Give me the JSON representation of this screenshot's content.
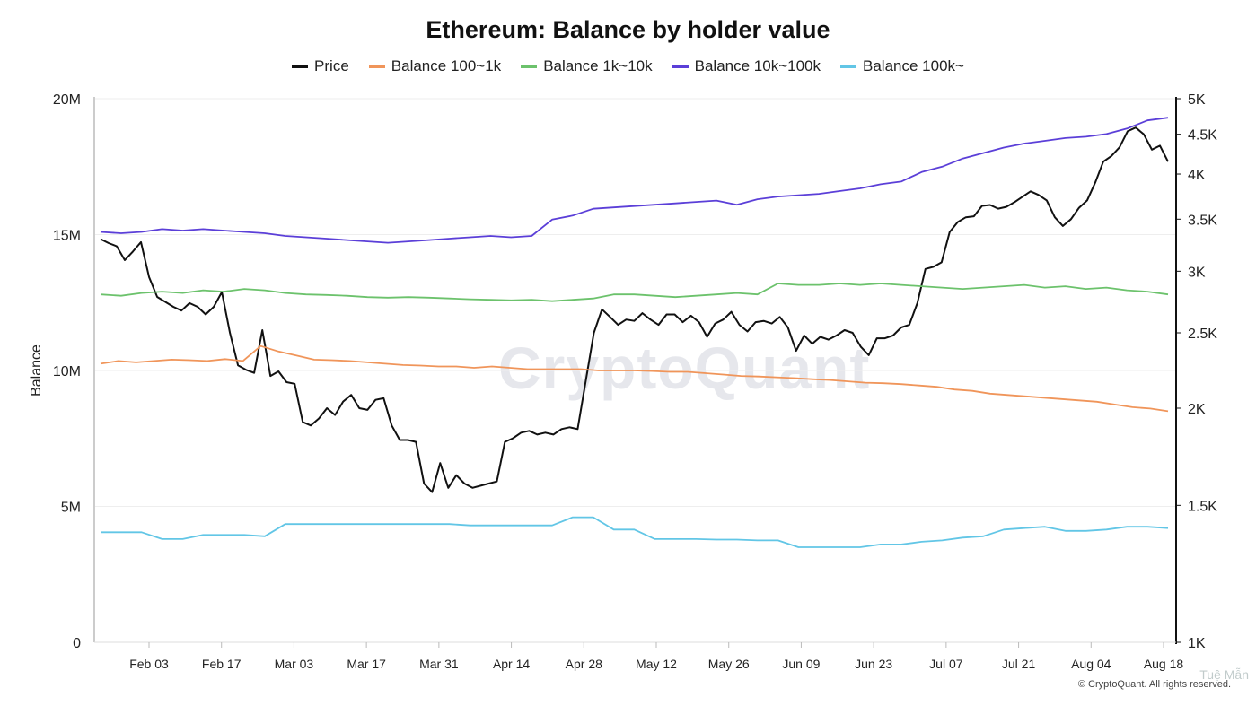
{
  "chart_data": {
    "type": "line",
    "title": "Ethereum: Balance by holder value",
    "ylabel": "Balance",
    "ylim": [
      0,
      20000000
    ],
    "y_ticks": [
      "0",
      "5M",
      "10M",
      "15M",
      "20M"
    ],
    "y2_range": [
      1000,
      5000
    ],
    "y2_scale": "log",
    "y2_ticks": [
      "1K",
      "1.5K",
      "2K",
      "2.5K",
      "3K",
      "3.5K",
      "4K",
      "4.5K",
      "5K"
    ],
    "x_tick_labels": [
      "Feb 03",
      "Feb 17",
      "Mar 03",
      "Mar 17",
      "Mar 31",
      "Apr 14",
      "Apr 28",
      "May 12",
      "May 26",
      "Jun 09",
      "Jun 23",
      "Jul 07",
      "Jul 21",
      "Aug 04",
      "Aug 18"
    ],
    "legend_position": "top-center",
    "grid": true,
    "series": [
      {
        "name": "Price",
        "color": "#111111",
        "axis": "right",
        "values": [
          3300,
          3260,
          3230,
          3100,
          3180,
          3270,
          2950,
          2780,
          2740,
          2700,
          2670,
          2730,
          2700,
          2640,
          2700,
          2820,
          2500,
          2270,
          2240,
          2220,
          2520,
          2200,
          2230,
          2160,
          2150,
          1920,
          1900,
          1940,
          2000,
          1960,
          2040,
          2080,
          2000,
          1990,
          2050,
          2060,
          1900,
          1820,
          1820,
          1810,
          1600,
          1560,
          1700,
          1580,
          1640,
          1600,
          1580,
          1590,
          1600,
          1610,
          1810,
          1830,
          1860,
          1870,
          1850,
          1860,
          1850,
          1880,
          1890,
          1880,
          2170,
          2500,
          2680,
          2620,
          2560,
          2600,
          2590,
          2650,
          2600,
          2560,
          2640,
          2640,
          2580,
          2630,
          2580,
          2470,
          2570,
          2600,
          2660,
          2560,
          2510,
          2580,
          2590,
          2570,
          2620,
          2540,
          2370,
          2480,
          2420,
          2470,
          2450,
          2480,
          2520,
          2500,
          2400,
          2340,
          2460,
          2460,
          2480,
          2540,
          2560,
          2730,
          3020,
          3040,
          3080,
          3370,
          3470,
          3520,
          3530,
          3640,
          3650,
          3610,
          3630,
          3680,
          3740,
          3800,
          3760,
          3700,
          3520,
          3430,
          3500,
          3620,
          3700,
          3900,
          4150,
          4220,
          4330,
          4540,
          4590,
          4500,
          4300,
          4350,
          4150
        ]
      },
      {
        "name": "Balance 100~1k",
        "color": "#f0955a",
        "axis": "left",
        "values": [
          10250000,
          10350000,
          10300000,
          10350000,
          10400000,
          10380000,
          10350000,
          10420000,
          10350000,
          10900000,
          10700000,
          10550000,
          10400000,
          10380000,
          10350000,
          10300000,
          10250000,
          10200000,
          10180000,
          10150000,
          10150000,
          10100000,
          10150000,
          10100000,
          10050000,
          10050000,
          10050000,
          10050000,
          10000000,
          10000000,
          10000000,
          9980000,
          9950000,
          9950000,
          9900000,
          9850000,
          9800000,
          9780000,
          9750000,
          9720000,
          9680000,
          9650000,
          9600000,
          9550000,
          9530000,
          9500000,
          9450000,
          9400000,
          9300000,
          9250000,
          9150000,
          9100000,
          9050000,
          9000000,
          8950000,
          8900000,
          8850000,
          8750000,
          8650000,
          8600000,
          8500000
        ]
      },
      {
        "name": "Balance 1k~10k",
        "color": "#6cc26c",
        "axis": "left",
        "values": [
          12800000,
          12750000,
          12850000,
          12900000,
          12850000,
          12950000,
          12900000,
          13000000,
          12950000,
          12850000,
          12800000,
          12780000,
          12750000,
          12700000,
          12680000,
          12700000,
          12680000,
          12650000,
          12620000,
          12600000,
          12580000,
          12600000,
          12550000,
          12600000,
          12650000,
          12800000,
          12800000,
          12750000,
          12700000,
          12750000,
          12800000,
          12850000,
          12800000,
          13200000,
          13150000,
          13150000,
          13200000,
          13150000,
          13200000,
          13150000,
          13100000,
          13050000,
          13000000,
          13050000,
          13100000,
          13150000,
          13050000,
          13100000,
          13000000,
          13050000,
          12950000,
          12900000,
          12800000
        ]
      },
      {
        "name": "Balance 10k~100k",
        "color": "#5b3fd8",
        "axis": "left",
        "values": [
          15100000,
          15050000,
          15100000,
          15200000,
          15150000,
          15200000,
          15150000,
          15100000,
          15050000,
          14950000,
          14900000,
          14850000,
          14800000,
          14750000,
          14700000,
          14750000,
          14800000,
          14850000,
          14900000,
          14950000,
          14900000,
          14950000,
          15550000,
          15700000,
          15950000,
          16000000,
          16050000,
          16100000,
          16150000,
          16200000,
          16250000,
          16100000,
          16300000,
          16400000,
          16450000,
          16500000,
          16600000,
          16700000,
          16850000,
          16950000,
          17300000,
          17500000,
          17800000,
          18000000,
          18200000,
          18350000,
          18450000,
          18550000,
          18600000,
          18700000,
          18900000,
          19200000,
          19300000
        ]
      },
      {
        "name": "Balance 100k~",
        "color": "#62c6e6",
        "axis": "left",
        "values": [
          4050000,
          4050000,
          4050000,
          3800000,
          3800000,
          3950000,
          3950000,
          3950000,
          3900000,
          4350000,
          4350000,
          4350000,
          4350000,
          4350000,
          4350000,
          4350000,
          4350000,
          4350000,
          4300000,
          4300000,
          4300000,
          4300000,
          4300000,
          4600000,
          4600000,
          4150000,
          4150000,
          3800000,
          3800000,
          3800000,
          3780000,
          3780000,
          3750000,
          3750000,
          3500000,
          3500000,
          3500000,
          3500000,
          3600000,
          3600000,
          3700000,
          3750000,
          3850000,
          3900000,
          4150000,
          4200000,
          4250000,
          4100000,
          4100000,
          4150000,
          4250000,
          4250000,
          4200000
        ]
      }
    ]
  },
  "watermark": "CryptoQuant",
  "copyright": "© CryptoQuant. All rights reserved.",
  "corner_mark": "Tuệ Mẫn"
}
